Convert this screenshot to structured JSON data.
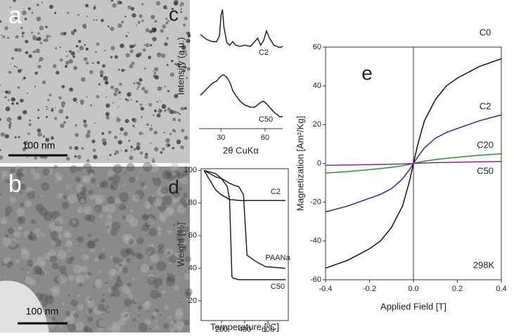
{
  "images": [
    {
      "label": "a",
      "scale_bar": "100 nm"
    },
    {
      "label": "b",
      "scale_bar": "100 nm"
    }
  ],
  "chart_data": [
    {
      "type": "line",
      "label": "c",
      "x_label": "2θ CuKα",
      "y_label": "Intensity (a.u.)",
      "x": [
        16,
        20,
        24,
        27,
        29,
        30,
        31,
        32,
        34,
        36,
        38,
        40,
        43,
        46,
        50,
        53,
        55,
        57,
        59,
        61,
        63,
        66,
        70,
        72
      ],
      "xlim": [
        15,
        72
      ],
      "ylim": [
        0,
        10.5
      ],
      "xticks": [
        30,
        60
      ],
      "series": [
        {
          "name": "C2",
          "color": "#222222",
          "values": [
            7.9,
            7.5,
            7.3,
            7.3,
            7.8,
            9.5,
            10.0,
            8.5,
            7.2,
            7.0,
            7.3,
            7.0,
            6.9,
            7.0,
            6.9,
            7.3,
            7.6,
            7.0,
            7.4,
            8.2,
            7.6,
            7.0,
            6.8,
            6.9
          ]
        },
        {
          "name": "C50",
          "color": "#222222",
          "values": [
            2.8,
            3.3,
            3.8,
            4.0,
            4.3,
            4.4,
            4.5,
            4.5,
            4.3,
            3.9,
            3.2,
            2.8,
            2.3,
            2.0,
            1.8,
            1.8,
            2.0,
            2.2,
            2.3,
            2.1,
            1.8,
            1.4,
            1.0,
            1.0
          ]
        }
      ]
    },
    {
      "type": "line",
      "label": "d",
      "x_label": "Temperature [ºC]",
      "y_label": "Weight [%]",
      "x": [
        50,
        150,
        200,
        250,
        270,
        290,
        300,
        350,
        390,
        420,
        500,
        580,
        750
      ],
      "xlim": [
        25,
        775
      ],
      "ylim": [
        8,
        101
      ],
      "xticks": [
        200,
        400,
        600
      ],
      "yticks": [
        20,
        40,
        60,
        80,
        100
      ],
      "series": [
        {
          "name": "C2",
          "color": "#222222",
          "values": [
            100,
            88,
            85,
            83,
            82,
            82,
            82,
            81.5,
            81.5,
            81.5,
            81.5,
            81.5,
            81.5
          ]
        },
        {
          "name": "PAANa",
          "color": "#222222",
          "values": [
            100,
            96,
            95,
            93,
            92,
            91.5,
            91,
            90,
            85,
            48,
            44,
            41,
            40
          ]
        },
        {
          "name": "C50",
          "color": "#222222",
          "values": [
            100,
            98,
            95,
            90,
            82,
            35,
            34,
            33,
            33,
            33,
            33,
            33,
            33
          ]
        }
      ]
    },
    {
      "type": "line",
      "label": "e",
      "x_label": "Applied Field [T]",
      "y_label": "Magnetization [Am²/Kg]",
      "annotation": "298K",
      "x": [
        -0.4,
        -0.3,
        -0.2,
        -0.15,
        -0.1,
        -0.05,
        -0.02,
        0,
        0.02,
        0.05,
        0.1,
        0.15,
        0.2,
        0.3,
        0.4
      ],
      "xlim": [
        -0.4,
        0.4
      ],
      "ylim": [
        -60,
        60
      ],
      "xticks": [
        -0.4,
        -0.2,
        {
          "value": 0,
          "label": "0.0"
        },
        0.2,
        0.4
      ],
      "yticks": [
        -60,
        -40,
        -20,
        0,
        20,
        40,
        60
      ],
      "series": [
        {
          "name": "C0",
          "color": "#111111",
          "values": [
            -54,
            -50,
            -44,
            -40,
            -33,
            -22,
            -10,
            0,
            10,
            22,
            33,
            40,
            44,
            50,
            54
          ]
        },
        {
          "name": "C2",
          "color": "#2a2a8c",
          "values": [
            -25,
            -22,
            -18,
            -16,
            -13,
            -8,
            -3.5,
            0,
            3.5,
            8,
            13,
            16,
            18,
            22,
            25
          ]
        },
        {
          "name": "C20",
          "color": "#2e8b3a",
          "values": [
            -5,
            -4.2,
            -3.2,
            -2.6,
            -2,
            -1.2,
            -0.5,
            0,
            0.5,
            1.2,
            2,
            2.6,
            3.2,
            4.2,
            5
          ]
        },
        {
          "name": "C50",
          "color": "#8b2a7a",
          "values": [
            -1,
            -0.8,
            -0.6,
            -0.5,
            -0.4,
            -0.25,
            -0.1,
            0,
            0.1,
            0.25,
            0.4,
            0.5,
            0.6,
            0.8,
            1
          ]
        }
      ]
    }
  ]
}
